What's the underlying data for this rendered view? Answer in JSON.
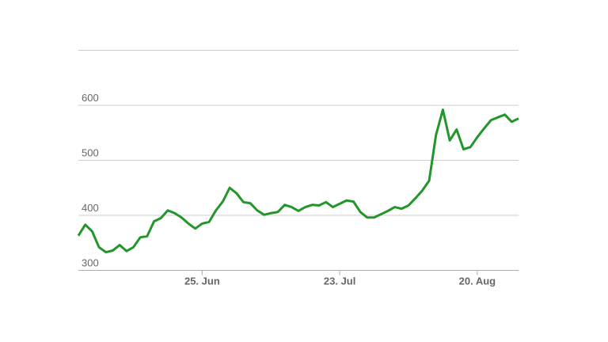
{
  "chart_data": {
    "type": "line",
    "categories": [
      null,
      null,
      null,
      null,
      null,
      null,
      null,
      null,
      null,
      null,
      null,
      null,
      null,
      null,
      null,
      null,
      null,
      null,
      "25. Jun",
      null,
      null,
      null,
      null,
      null,
      null,
      null,
      null,
      null,
      null,
      null,
      null,
      null,
      null,
      null,
      null,
      null,
      null,
      null,
      "23. Jul",
      null,
      null,
      null,
      null,
      null,
      null,
      null,
      null,
      null,
      null,
      null,
      null,
      null,
      null,
      null,
      null,
      null,
      null,
      null,
      "20. Aug",
      null,
      null,
      null,
      null,
      null,
      null
    ],
    "series": [
      {
        "name": null,
        "color": "#22962a",
        "values": [
          363,
          383,
          371,
          342,
          333,
          336,
          346,
          335,
          342,
          360,
          362,
          389,
          395,
          409,
          404,
          396,
          385,
          376,
          385,
          388,
          409,
          425,
          450,
          440,
          424,
          422,
          409,
          401,
          404,
          406,
          419,
          415,
          408,
          415,
          419,
          418,
          424,
          415,
          421,
          427,
          425,
          406,
          396,
          396,
          402,
          408,
          415,
          412,
          418,
          431,
          445,
          463,
          546,
          592,
          536,
          556,
          520,
          524,
          542,
          558,
          573,
          578,
          583,
          570,
          576
        ]
      }
    ],
    "ylim": [
      300,
      700
    ],
    "yticks": [
      300,
      400,
      500,
      600
    ],
    "grid": true
  }
}
